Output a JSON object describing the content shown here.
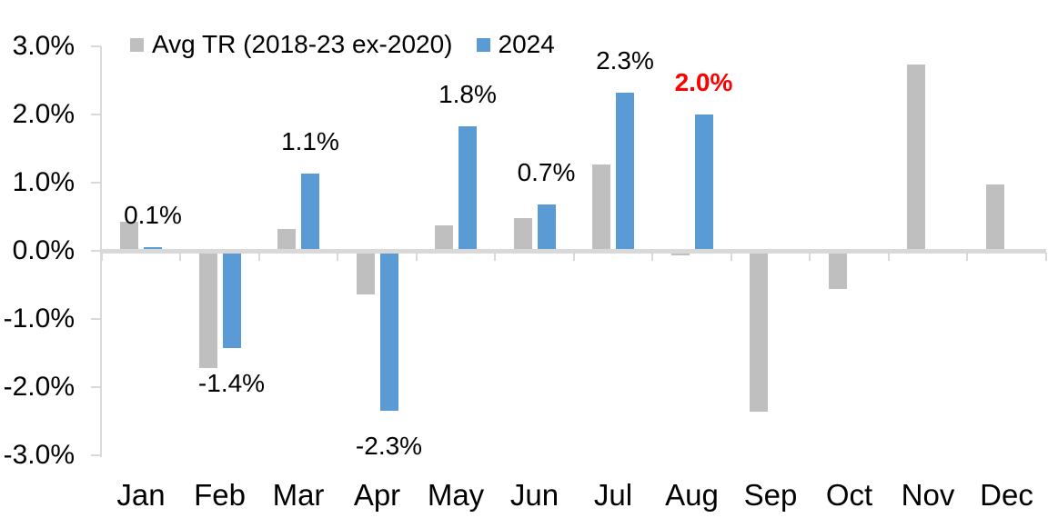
{
  "chart_data": {
    "type": "bar",
    "title": "",
    "xlabel": "",
    "ylabel": "",
    "categories": [
      "Jan",
      "Feb",
      "Mar",
      "Apr",
      "May",
      "Jun",
      "Jul",
      "Aug",
      "Sep",
      "Oct",
      "Nov",
      "Dec"
    ],
    "series": [
      {
        "name": "Avg TR (2018-23 ex-2020)",
        "color": "#BFBFBF",
        "values": [
          0.43,
          -1.72,
          0.32,
          -0.64,
          0.37,
          0.48,
          1.27,
          -0.07,
          -2.36,
          -0.56,
          2.73,
          0.97
        ]
      },
      {
        "name": "2024",
        "color": "#5B9BD5",
        "values": [
          0.05,
          -1.43,
          1.13,
          -2.35,
          1.83,
          0.68,
          2.32,
          2.0,
          null,
          null,
          null,
          null
        ],
        "data_labels": [
          "0.1%",
          "-1.4%",
          "1.1%",
          "-2.3%",
          "1.8%",
          "0.7%",
          "2.3%",
          "2.0%",
          null,
          null,
          null,
          null
        ],
        "label_highlight": {
          "index": 7,
          "color": "#FF0000",
          "bold": true
        }
      }
    ],
    "yticks": [
      {
        "value": 3,
        "label": "3.0%"
      },
      {
        "value": 2,
        "label": "2.0%"
      },
      {
        "value": 1,
        "label": "1.0%"
      },
      {
        "value": 0,
        "label": "0.0%"
      },
      {
        "value": -1,
        "label": "-1.0%"
      },
      {
        "value": -2,
        "label": "-2.0%"
      },
      {
        "value": -3,
        "label": "-3.0%"
      }
    ],
    "ylim": [
      -3,
      3
    ],
    "grid": false,
    "legend_position": "top",
    "axis_color": "#D9D9D9",
    "text_color": "#000000",
    "background_color": "#FFFFFF"
  }
}
